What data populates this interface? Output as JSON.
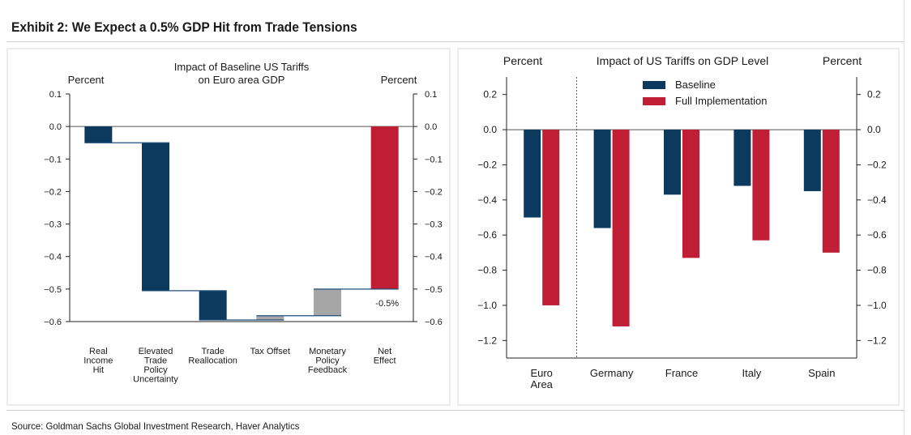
{
  "exhibit_title": "Exhibit 2: We Expect a 0.5% GDP Hit from Trade Tensions",
  "source": "Source: Goldman Sachs Global Investment Research, Haver Analytics",
  "colors": {
    "navy": "#0b3a5e",
    "red": "#bf1e35",
    "gray": "#a6a6a6"
  },
  "chart_data": [
    {
      "type": "bar",
      "subtype": "waterfall",
      "title": "Impact of Baseline US Tariffs on Euro area GDP",
      "title_lines": [
        "Impact of Baseline US Tariffs",
        "on Euro area GDP"
      ],
      "ylabel_left": "Percent",
      "ylabel_right": "Percent",
      "ylim": [
        -0.6,
        0.1
      ],
      "yticks": [
        "0.1",
        "0.0",
        "−0.1",
        "−0.2",
        "−0.3",
        "−0.4",
        "−0.5",
        "−0.6"
      ],
      "categories": [
        [
          "Real",
          "Income",
          "Hit"
        ],
        [
          "Elevated",
          "Trade",
          "Policy",
          "Uncertainty"
        ],
        [
          "Trade",
          "Reallocation"
        ],
        [
          "Tax Offset"
        ],
        [
          "Monetary",
          "Policy",
          "Feedback"
        ],
        [
          "Net",
          "Effect"
        ]
      ],
      "steps": [
        {
          "start": 0.0,
          "end": -0.05,
          "color": "navy"
        },
        {
          "start": -0.05,
          "end": -0.505,
          "color": "navy"
        },
        {
          "start": -0.505,
          "end": -0.595,
          "color": "navy"
        },
        {
          "start": -0.595,
          "end": -0.582,
          "color": "gray"
        },
        {
          "start": -0.582,
          "end": -0.5,
          "color": "gray"
        },
        {
          "start": 0.0,
          "end": -0.5,
          "color": "red"
        }
      ],
      "annotation": "-0.5%"
    },
    {
      "type": "bar",
      "title": "Impact of US Tariffs on GDP Level",
      "ylabel_left": "Percent",
      "ylabel_right": "Percent",
      "ylim": [
        -1.3,
        0.3
      ],
      "yticks": [
        "0.2",
        "0.0",
        "−0.2",
        "−0.4",
        "−0.6",
        "−0.8",
        "−1.0",
        "−1.2"
      ],
      "categories": [
        [
          "Euro",
          "Area"
        ],
        [
          "Germany"
        ],
        [
          "France"
        ],
        [
          "Italy"
        ],
        [
          "Spain"
        ]
      ],
      "series": [
        {
          "name": "Baseline",
          "color": "navy",
          "values": [
            -0.5,
            -0.56,
            -0.37,
            -0.32,
            -0.35
          ]
        },
        {
          "name": "Full Implementation",
          "color": "red",
          "values": [
            -1.0,
            -1.12,
            -0.73,
            -0.63,
            -0.7
          ]
        }
      ]
    }
  ]
}
